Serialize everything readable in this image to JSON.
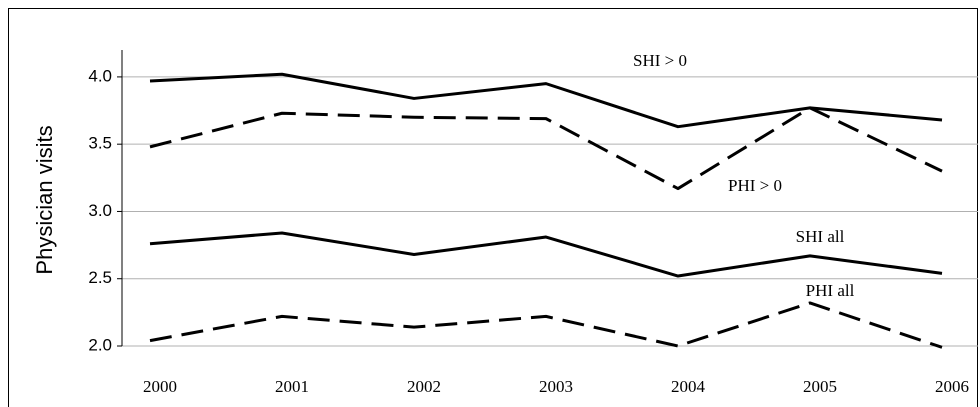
{
  "chart_data": {
    "type": "line",
    "y_label": "Physician visits",
    "categories": [
      "2000",
      "2001",
      "2002",
      "2003",
      "2004",
      "2005",
      "2006"
    ],
    "series": [
      {
        "name": "SHI > 0",
        "color": "#000000",
        "style": "solid",
        "values": [
          3.97,
          4.02,
          3.84,
          3.95,
          3.63,
          3.77,
          3.68
        ]
      },
      {
        "name": "PHI > 0",
        "color": "#000000",
        "style": "dashed",
        "values": [
          3.48,
          3.73,
          3.7,
          3.69,
          3.17,
          3.77,
          3.3
        ]
      },
      {
        "name": "SHI all",
        "color": "#000000",
        "style": "solid",
        "values": [
          2.76,
          2.84,
          2.68,
          2.81,
          2.52,
          2.67,
          2.54
        ]
      },
      {
        "name": "PHI all",
        "color": "#000000",
        "style": "dashed",
        "values": [
          2.04,
          2.22,
          2.14,
          2.22,
          2.0,
          2.32,
          1.99
        ]
      }
    ],
    "ylim": [
      2,
      4.2
    ],
    "yticks": [
      {
        "value": 2,
        "label": "2.0"
      },
      2.5,
      {
        "value": 3,
        "label": "3.0"
      },
      3.5,
      {
        "value": 4,
        "label": "4.0"
      }
    ],
    "grid": true
  }
}
